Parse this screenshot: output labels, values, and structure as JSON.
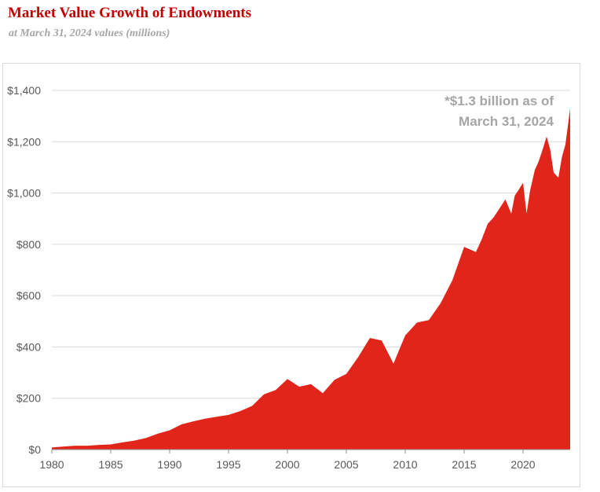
{
  "header": {
    "title": "Market Value Growth of Endowments",
    "subtitle": "at March 31, 2024 values (millions)"
  },
  "colors": {
    "title": "#c00000",
    "subtitle": "#a6a6a6",
    "area": "#e1251b",
    "grid": "#d9d9d9",
    "axis_text": "#595959"
  },
  "chart_data": {
    "type": "area",
    "title": "Market Value Growth of Endowments",
    "subtitle": "at March 31, 2024 values (millions)",
    "xlabel": "",
    "ylabel": "",
    "xlim": [
      1980,
      2024
    ],
    "ylim": [
      0,
      1400
    ],
    "x_ticks": [
      1980,
      1985,
      1990,
      1995,
      2000,
      2005,
      2010,
      2015,
      2020
    ],
    "x_tick_labels": [
      "1980",
      "1985",
      "1990",
      "1995",
      "2000",
      "2005",
      "2010",
      "2015",
      "2020"
    ],
    "y_ticks": [
      0,
      200,
      400,
      600,
      800,
      1000,
      1200,
      1400
    ],
    "y_tick_labels": [
      "$0",
      "$200",
      "$400",
      "$600",
      "$800",
      "$1,000",
      "$1,200",
      "$1,400"
    ],
    "grid": "horizontal",
    "legend": "none",
    "annotation": {
      "lines": [
        "*$1.3 billion as of",
        "March 31, 2024"
      ],
      "placement": "top-right"
    },
    "series": [
      {
        "x": [
          1980,
          1981,
          1982,
          1983,
          1984,
          1985,
          1986,
          1987,
          1988,
          1989,
          1990,
          1991,
          1992,
          1993,
          1994,
          1995,
          1996,
          1997,
          1998,
          1999,
          2000,
          2001,
          2002,
          2003,
          2004,
          2005,
          2006,
          2007,
          2008,
          2009,
          2010,
          2011,
          2012,
          2013,
          2014,
          2015,
          2015.5,
          2016,
          2016.5,
          2017,
          2017.5,
          2018,
          2018.5,
          2019,
          2019.3,
          2019.6,
          2020,
          2020.3,
          2020.6,
          2021,
          2021.3,
          2021.6,
          2022,
          2022.3,
          2022.6,
          2023,
          2023.3,
          2023.6,
          2024
        ],
        "values": [
          8,
          12,
          15,
          15,
          18,
          20,
          28,
          35,
          45,
          62,
          75,
          98,
          110,
          120,
          128,
          135,
          150,
          170,
          215,
          232,
          275,
          245,
          255,
          220,
          272,
          295,
          360,
          435,
          425,
          335,
          445,
          495,
          505,
          570,
          660,
          790,
          780,
          770,
          820,
          880,
          905,
          940,
          975,
          920,
          990,
          1010,
          1040,
          920,
          1010,
          1090,
          1120,
          1160,
          1220,
          1170,
          1080,
          1060,
          1140,
          1190,
          1330
        ]
      }
    ]
  }
}
